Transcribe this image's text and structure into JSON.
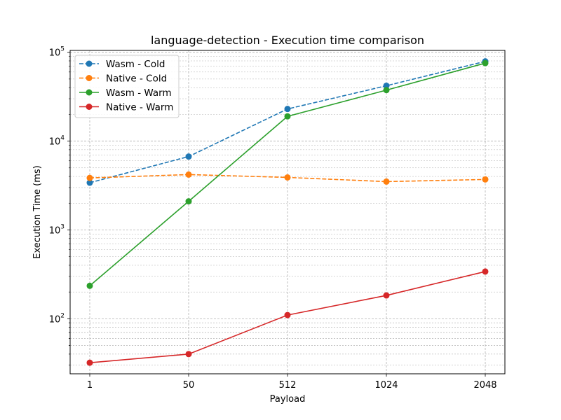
{
  "chart_data": {
    "type": "line",
    "title": "language-detection - Execution time comparison",
    "xlabel": "Payload",
    "ylabel": "Execution Time (ms)",
    "categories": [
      "1",
      "50",
      "512",
      "1024",
      "2048"
    ],
    "y_scale": "log",
    "ylim": [
      24,
      105000
    ],
    "y_ticks": [
      {
        "value": 100,
        "base": "10",
        "exp": "2"
      },
      {
        "value": 1000,
        "base": "10",
        "exp": "3"
      },
      {
        "value": 10000,
        "base": "10",
        "exp": "4"
      },
      {
        "value": 100000,
        "base": "10",
        "exp": "5"
      }
    ],
    "grid": true,
    "legend_position": "top-left",
    "series": [
      {
        "name": "Wasm - Cold",
        "color": "#1f77b4",
        "linestyle": "dashed",
        "values": [
          3400,
          6700,
          23000,
          42000,
          79000
        ]
      },
      {
        "name": "Native - Cold",
        "color": "#ff7f0e",
        "linestyle": "dashed",
        "values": [
          3850,
          4200,
          3900,
          3500,
          3700
        ]
      },
      {
        "name": "Wasm - Warm",
        "color": "#2ca02c",
        "linestyle": "solid",
        "values": [
          235,
          2100,
          19000,
          37500,
          75500
        ]
      },
      {
        "name": "Native - Warm",
        "color": "#d62728",
        "linestyle": "solid",
        "values": [
          32,
          40,
          110,
          183,
          340
        ]
      }
    ]
  }
}
